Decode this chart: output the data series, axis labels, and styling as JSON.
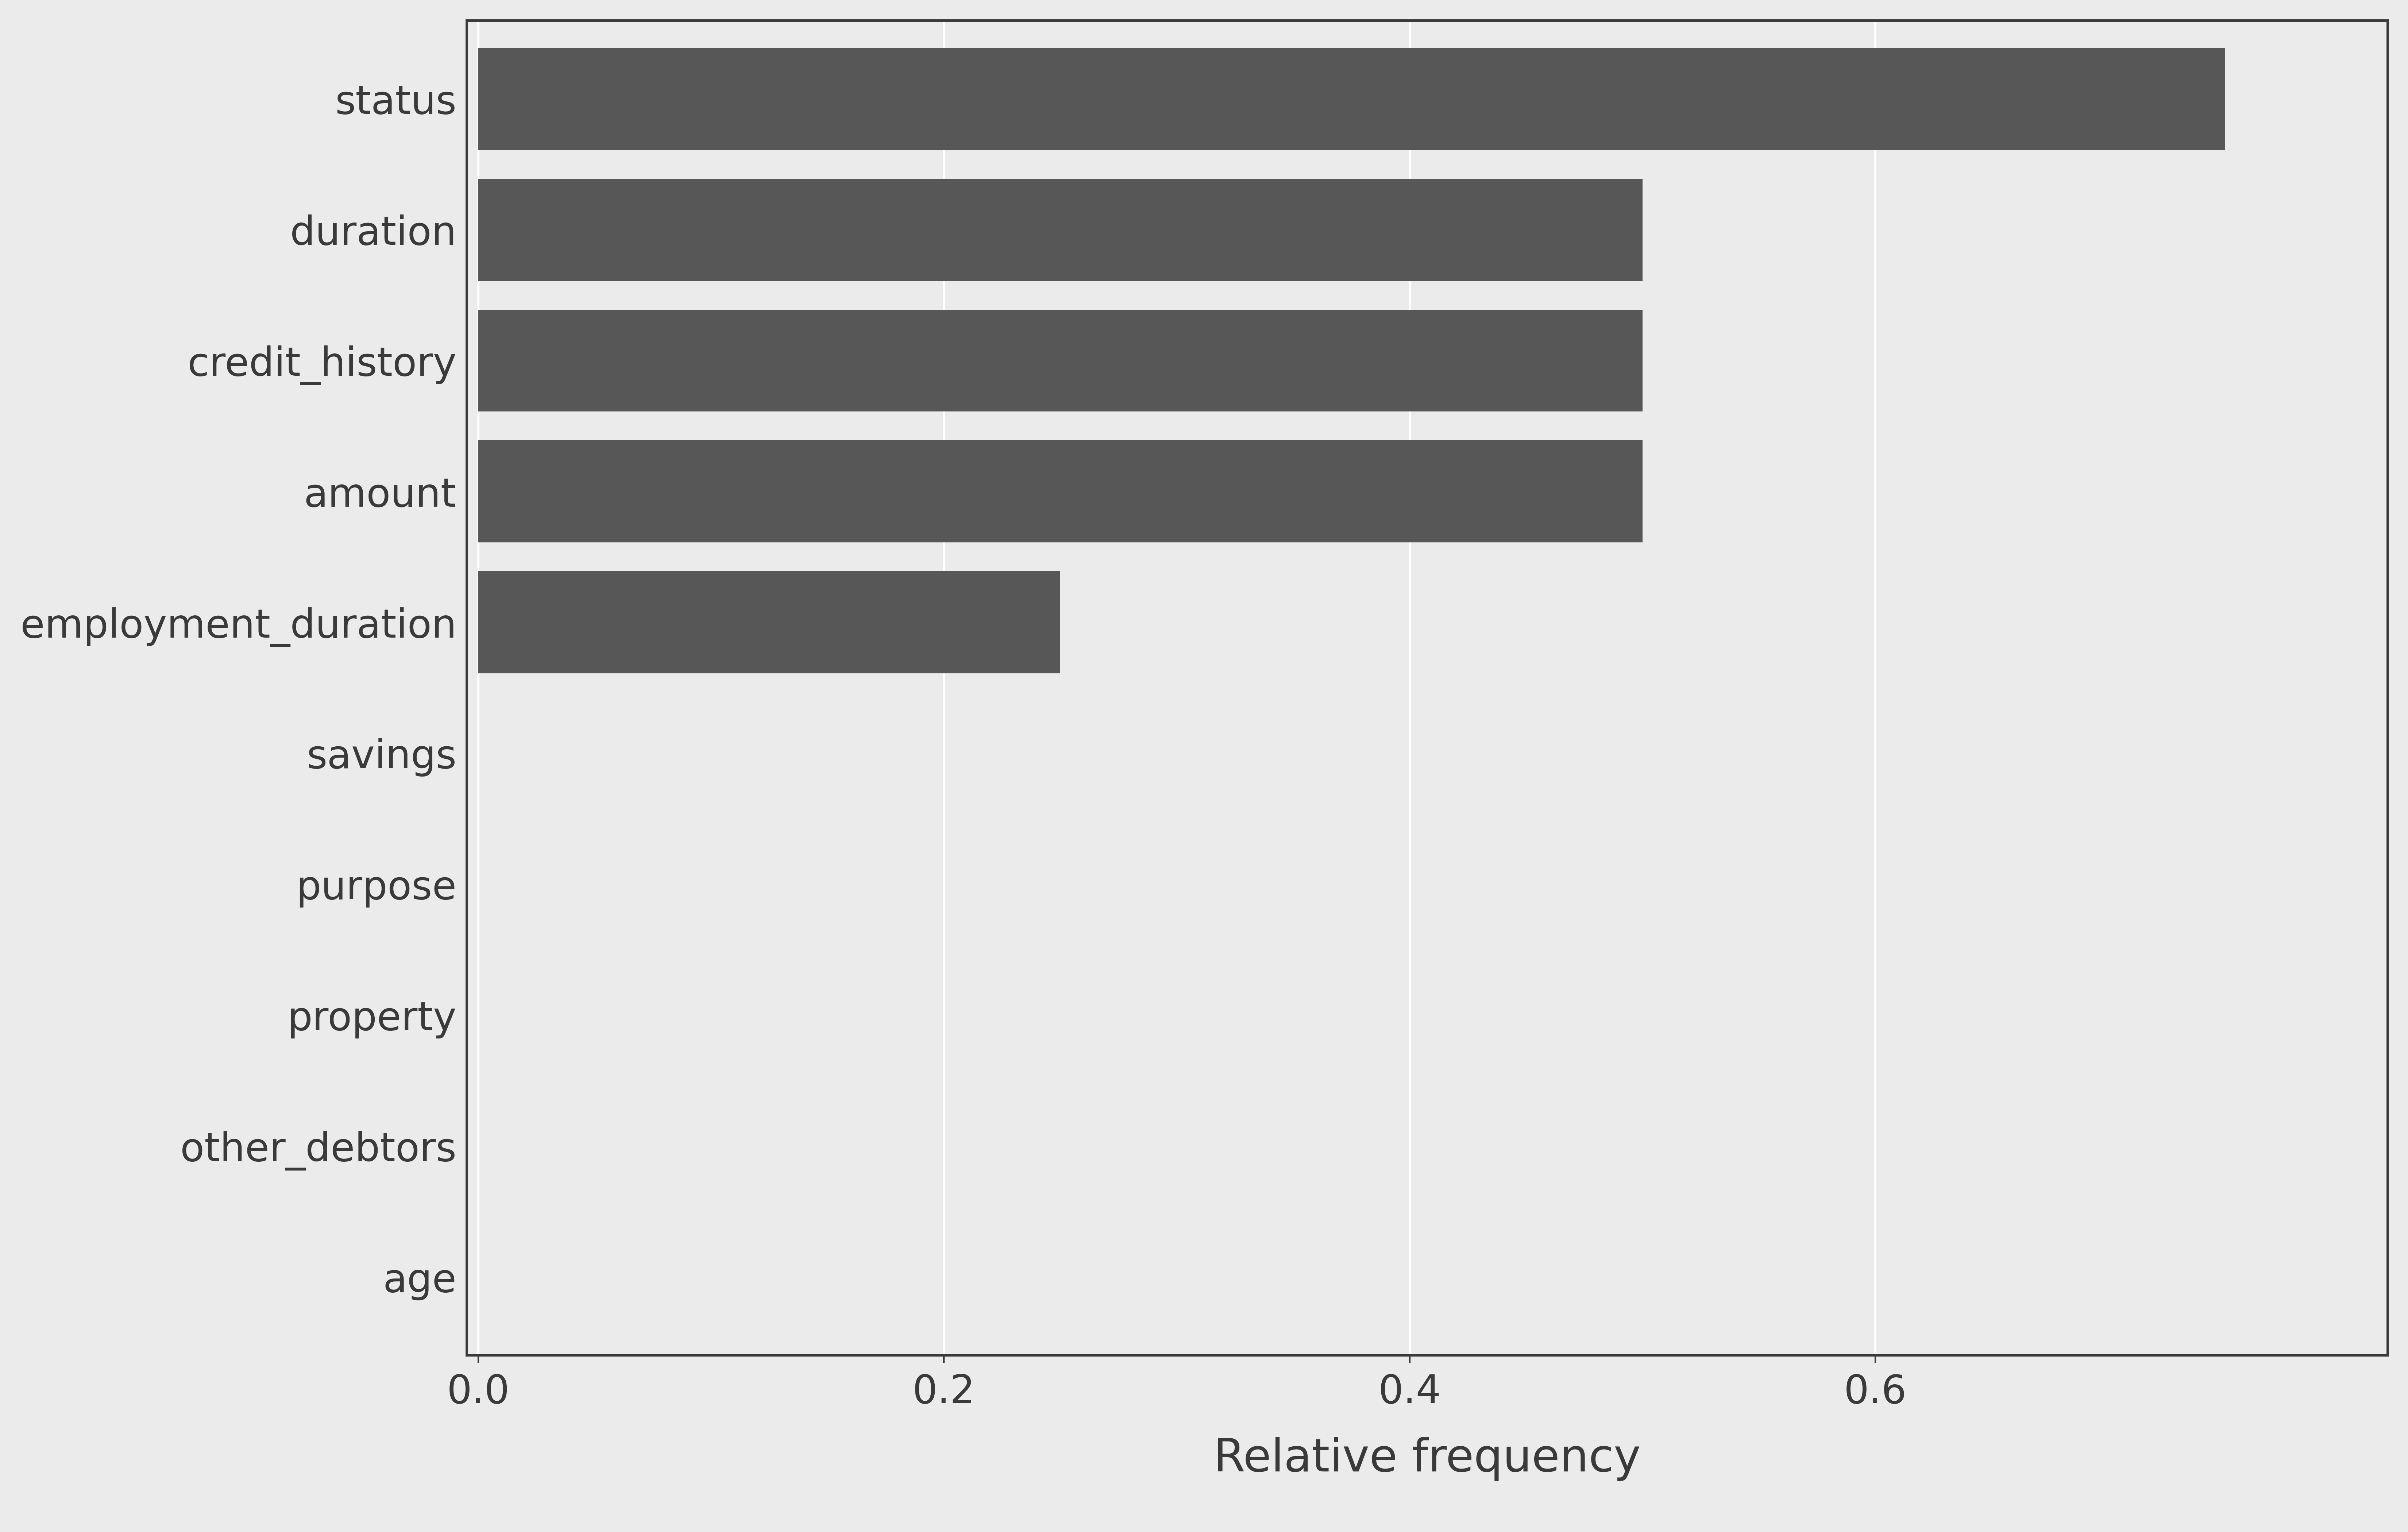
{
  "categories": [
    "age",
    "other_debtors",
    "property",
    "purpose",
    "savings",
    "employment_duration",
    "amount",
    "credit_history",
    "duration",
    "status"
  ],
  "values": [
    0.0,
    0.0,
    0.0,
    0.0,
    0.0,
    0.25,
    0.5,
    0.5,
    0.5,
    0.75
  ],
  "bar_color": "#575757",
  "background_color": "#ebebeb",
  "plot_bg_color": "#ebebeb",
  "xlabel": "Relative frequency",
  "xlim": [
    -0.005,
    0.82
  ],
  "xticks": [
    0.0,
    0.2,
    0.4,
    0.6
  ],
  "grid_color": "#ffffff",
  "label_fontsize": 90,
  "tick_fontsize": 78,
  "bar_height": 0.78,
  "spine_color": "#3a3a3a",
  "spine_linewidth": 5
}
